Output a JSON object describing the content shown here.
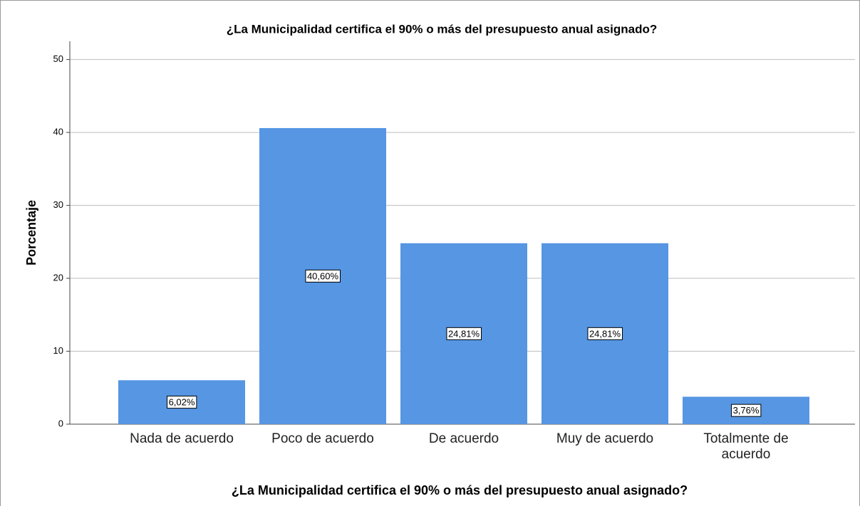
{
  "chart_data": {
    "type": "bar",
    "title": "¿La Municipalidad certifica el 90% o más del presupuesto anual asignado?",
    "x_label": "¿La Municipalidad certifica el 90% o más del presupuesto anual asignado?",
    "y_label": "Porcentaje",
    "categories": [
      "Nada de acuerdo",
      "Poco de acuerdo",
      "De acuerdo",
      "Muy de acuerdo",
      "Totalmente de acuerdo"
    ],
    "values": [
      6.02,
      40.6,
      24.81,
      24.81,
      3.76
    ],
    "value_labels": [
      "6,02%",
      "40,60%",
      "24,81%",
      "24,81%",
      "3,76%"
    ],
    "color": "#5696e3",
    "ylim": [
      0,
      52.5
    ],
    "yticks": [
      0,
      10,
      20,
      30,
      40,
      50
    ],
    "grid": true
  }
}
